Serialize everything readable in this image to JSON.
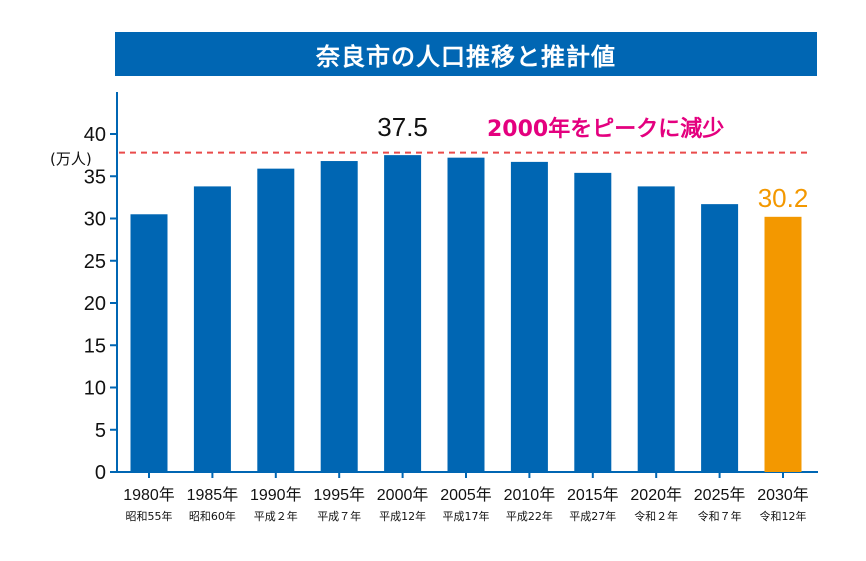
{
  "chart_data": {
    "type": "bar",
    "title": "奈良市の人口推移と推計値",
    "ylabel": "(万人)",
    "ylim": [
      0,
      40
    ],
    "yticks": [
      0,
      5,
      10,
      15,
      20,
      25,
      30,
      35,
      40
    ],
    "categories": [
      "1980年",
      "1985年",
      "1990年",
      "1995年",
      "2000年",
      "2005年",
      "2010年",
      "2015年",
      "2020年",
      "2025年",
      "2030年"
    ],
    "era_labels": [
      "昭和55年",
      "昭和60年",
      "平成２年",
      "平成７年",
      "平成12年",
      "平成17年",
      "平成22年",
      "平成27年",
      "令和２年",
      "令和７年",
      "令和12年"
    ],
    "values": [
      30.5,
      33.8,
      35.9,
      36.8,
      37.5,
      37.2,
      36.7,
      35.4,
      33.8,
      31.7,
      30.2
    ],
    "data_labels": [
      {
        "index": 4,
        "text": "37.5"
      },
      {
        "index": 10,
        "text": "30.2"
      }
    ],
    "reference_line": {
      "value": 37.8,
      "label": "2000年をピークに減少"
    },
    "colors": {
      "bar": "#0066b3",
      "highlight_bar": "#f39800",
      "reference_line": "#e94b4b",
      "annotation": "#e4007f",
      "title_bg": "#0066b3"
    },
    "highlight_index": 10,
    "grid": false
  }
}
